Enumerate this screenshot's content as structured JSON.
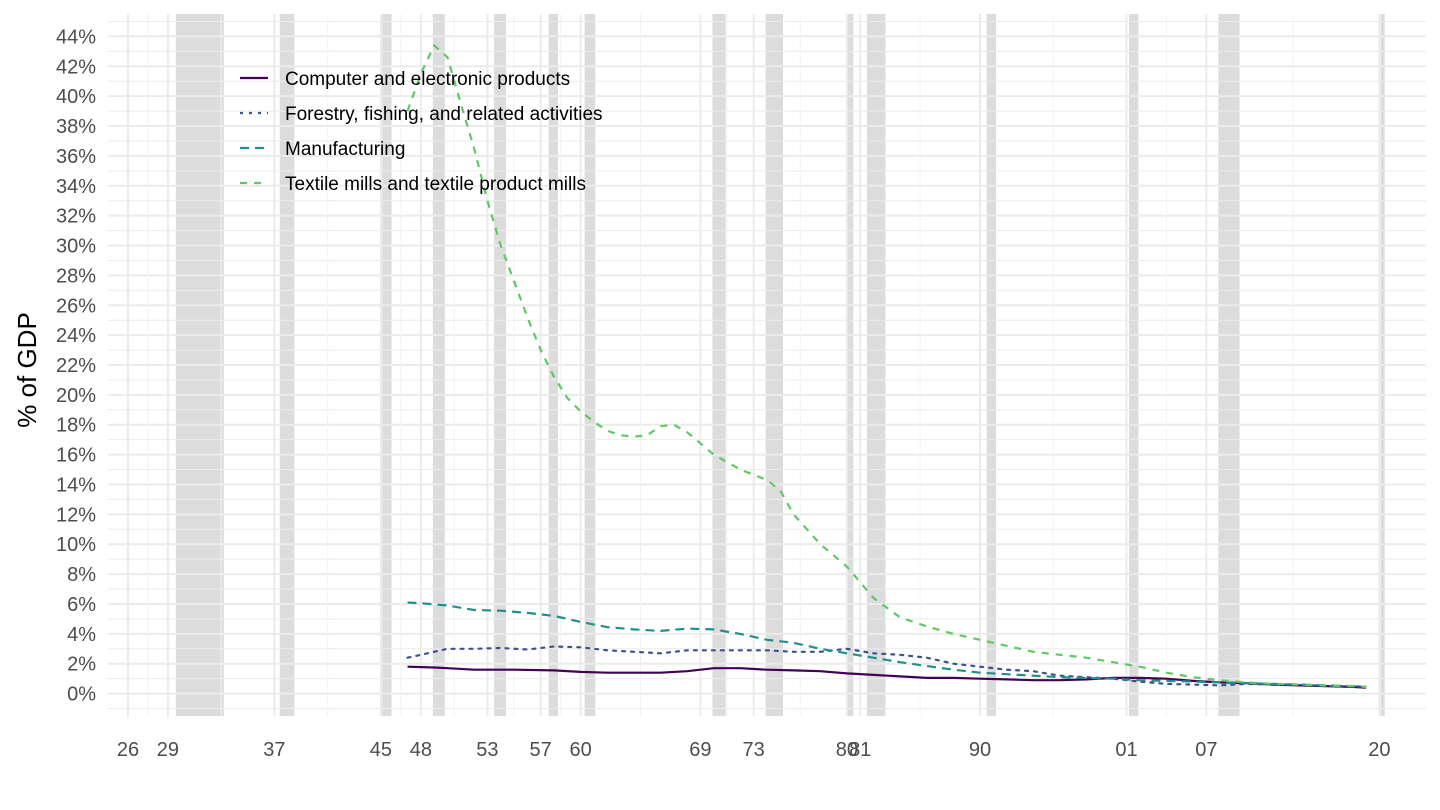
{
  "chart_data": {
    "type": "line",
    "title": "",
    "xlabel": "",
    "ylabel": "% of GDP",
    "xlim": [
      1924.5,
      2023.5
    ],
    "ylim": [
      -1.5,
      45.5
    ],
    "y_ticks": [
      0,
      2,
      4,
      6,
      8,
      10,
      12,
      14,
      16,
      18,
      20,
      22,
      24,
      26,
      28,
      30,
      32,
      34,
      36,
      38,
      40,
      42,
      44
    ],
    "y_tick_labels": [
      "0%",
      "2%",
      "4%",
      "6%",
      "8%",
      "10%",
      "12%",
      "14%",
      "16%",
      "18%",
      "20%",
      "22%",
      "24%",
      "26%",
      "28%",
      "30%",
      "32%",
      "34%",
      "36%",
      "38%",
      "40%",
      "42%",
      "44%"
    ],
    "x_ticks": [
      1926,
      1929,
      1937,
      1945,
      1948,
      1953,
      1957,
      1960,
      1969,
      1973,
      1980,
      1981,
      1990,
      2001,
      2007,
      2020
    ],
    "x_tick_labels": [
      "26",
      "29",
      "37",
      "45",
      "48",
      "53",
      "57",
      "60",
      "69",
      "73",
      "80",
      "81",
      "90",
      "01",
      "07",
      "20"
    ],
    "grid": true,
    "legend_position": "top-left",
    "recessions": [
      [
        1929.6,
        1933.2
      ],
      [
        1937.4,
        1938.5
      ],
      [
        1945.1,
        1945.8
      ],
      [
        1948.9,
        1949.8
      ],
      [
        1953.5,
        1954.4
      ],
      [
        1957.6,
        1958.3
      ],
      [
        1960.3,
        1961.1
      ],
      [
        1969.9,
        1970.9
      ],
      [
        1973.9,
        1975.2
      ],
      [
        1980.0,
        1980.5
      ],
      [
        1981.5,
        1982.9
      ],
      [
        1990.5,
        1991.2
      ],
      [
        2001.2,
        2001.9
      ],
      [
        2007.9,
        2009.5
      ],
      [
        2020.1,
        2020.4
      ]
    ],
    "series": [
      {
        "name": "Computer and electronic products",
        "color": "#440154",
        "dash": "solid",
        "x": [
          1947,
          1949,
          1950,
          1952,
          1955,
          1958,
          1960,
          1962,
          1964,
          1966,
          1968,
          1970,
          1972,
          1974,
          1976,
          1978,
          1980,
          1982,
          1984,
          1986,
          1988,
          1990,
          1992,
          1994,
          1996,
          1998,
          2000,
          2002,
          2004,
          2006,
          2008,
          2010,
          2012,
          2014,
          2016,
          2018,
          2019
        ],
        "values": [
          1.8,
          1.75,
          1.7,
          1.6,
          1.6,
          1.55,
          1.45,
          1.4,
          1.4,
          1.4,
          1.5,
          1.7,
          1.7,
          1.6,
          1.55,
          1.5,
          1.35,
          1.25,
          1.15,
          1.05,
          1.05,
          1.0,
          0.95,
          0.9,
          0.9,
          0.95,
          1.05,
          1.05,
          1.0,
          0.85,
          0.75,
          0.7,
          0.6,
          0.55,
          0.5,
          0.45,
          0.4
        ]
      },
      {
        "name": "Forestry, fishing, and related activities",
        "color": "#3b528b",
        "dash": "dotted",
        "x": [
          1947,
          1948,
          1950,
          1952,
          1954,
          1956,
          1958,
          1960,
          1962,
          1964,
          1966,
          1968,
          1970,
          1972,
          1974,
          1976,
          1978,
          1980,
          1982,
          1984,
          1986,
          1988,
          1990,
          1992,
          1994,
          1996,
          1998,
          2000,
          2002,
          2004,
          2006,
          2008,
          2010,
          2012,
          2014,
          2016,
          2018,
          2019
        ],
        "values": [
          2.4,
          2.6,
          3.0,
          3.0,
          3.05,
          2.95,
          3.15,
          3.1,
          2.9,
          2.8,
          2.7,
          2.9,
          2.9,
          2.9,
          2.9,
          2.8,
          2.8,
          3.0,
          2.7,
          2.6,
          2.4,
          2.0,
          1.8,
          1.6,
          1.5,
          1.2,
          1.1,
          1.0,
          0.8,
          0.65,
          0.6,
          0.55,
          0.65,
          0.6,
          0.6,
          0.5,
          0.5,
          0.45
        ]
      },
      {
        "name": "Manufacturing",
        "color": "#21908c",
        "dash": "dashed",
        "x": [
          1947,
          1948,
          1950,
          1952,
          1954,
          1956,
          1958,
          1960,
          1962,
          1964,
          1966,
          1968,
          1970,
          1972,
          1974,
          1976,
          1978,
          1980,
          1982,
          1984,
          1986,
          1988,
          1990,
          1992,
          1994,
          1996,
          1998,
          2000,
          2002,
          2004,
          2006,
          2008,
          2010,
          2012,
          2014,
          2016,
          2018,
          2019
        ],
        "values": [
          6.1,
          6.05,
          5.9,
          5.6,
          5.55,
          5.4,
          5.2,
          4.8,
          4.45,
          4.3,
          4.2,
          4.35,
          4.3,
          4.0,
          3.6,
          3.4,
          3.0,
          2.7,
          2.4,
          2.1,
          1.85,
          1.6,
          1.4,
          1.3,
          1.2,
          1.1,
          1.05,
          1.0,
          0.9,
          0.85,
          0.8,
          0.75,
          0.7,
          0.65,
          0.6,
          0.55,
          0.5,
          0.45
        ]
      },
      {
        "name": "Textile mills and textile product mills",
        "color": "#5ec962",
        "dash": "longdash",
        "x": [
          1947,
          1948,
          1949,
          1950,
          1951,
          1952,
          1953,
          1954,
          1955,
          1956,
          1957,
          1958,
          1959,
          1960,
          1961,
          1962,
          1963,
          1964,
          1965,
          1966,
          1967,
          1968,
          1970,
          1972,
          1974,
          1975,
          1976,
          1978,
          1980,
          1982,
          1984,
          1986,
          1988,
          1990,
          1992,
          1994,
          1996,
          1998,
          2000,
          2002,
          2004,
          2006,
          2008,
          2010,
          2012,
          2014,
          2016,
          2018,
          2019
        ],
        "values": [
          39.0,
          41.5,
          43.4,
          42.6,
          39.5,
          36.5,
          33.0,
          30.0,
          27.6,
          25.2,
          23.0,
          21.2,
          19.8,
          18.9,
          18.2,
          17.6,
          17.3,
          17.2,
          17.3,
          17.9,
          18.0,
          17.5,
          16.0,
          15.0,
          14.3,
          13.6,
          12.0,
          10.0,
          8.5,
          6.4,
          5.1,
          4.5,
          4.0,
          3.6,
          3.2,
          2.8,
          2.6,
          2.4,
          2.1,
          1.8,
          1.4,
          1.1,
          0.9,
          0.75,
          0.65,
          0.6,
          0.55,
          0.5,
          0.45
        ]
      }
    ]
  }
}
